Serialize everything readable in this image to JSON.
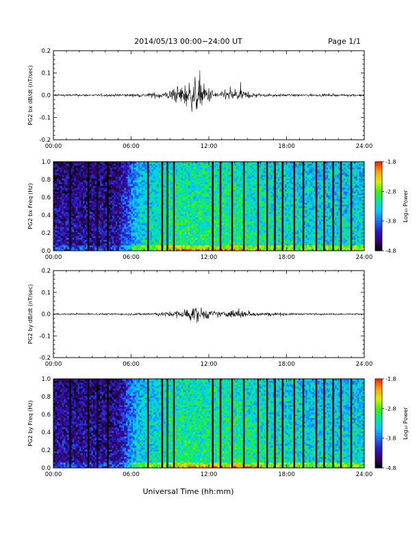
{
  "header": {
    "title": "2014/05/13  00:00−24:00 UT",
    "page": "Page 1/1"
  },
  "xlabel": "Universal Time (hh:mm)",
  "colors": {
    "trace": "#000000",
    "colormap": [
      "#000000",
      "#3a0070",
      "#2a1ac8",
      "#1a6cff",
      "#00c8ff",
      "#00e8a0",
      "#40f000",
      "#d8f000",
      "#ffa000",
      "#ff2000"
    ]
  },
  "chart_data": [
    {
      "type": "line",
      "ylabel": "PG2 bx dB/dt (nT/sec)",
      "xlim": [
        0,
        24
      ],
      "ylim": [
        -0.2,
        0.2
      ],
      "x_ticks": [
        "00:00",
        "06:00",
        "12:00",
        "18:00",
        "24:00"
      ],
      "y_ticks": [
        "-0.2",
        "-0.1",
        "0.0",
        "0.1",
        "0.2"
      ],
      "series": [
        {
          "envelope": [
            [
              0,
              0.008
            ],
            [
              2,
              0.008
            ],
            [
              4,
              0.008
            ],
            [
              5,
              0.01
            ],
            [
              6,
              0.012
            ],
            [
              7,
              0.014
            ],
            [
              7.5,
              0.02
            ],
            [
              8.5,
              0.025
            ],
            [
              9,
              0.04
            ],
            [
              9.5,
              0.065
            ],
            [
              10,
              0.08
            ],
            [
              10.5,
              0.11
            ],
            [
              11,
              0.13
            ],
            [
              11.5,
              0.1
            ],
            [
              12,
              0.06
            ],
            [
              12.5,
              0.035
            ],
            [
              13,
              0.025
            ],
            [
              13.5,
              0.04
            ],
            [
              14,
              0.06
            ],
            [
              14.5,
              0.045
            ],
            [
              15,
              0.025
            ],
            [
              15.5,
              0.018
            ],
            [
              16,
              0.012
            ],
            [
              17,
              0.01
            ],
            [
              18,
              0.009
            ],
            [
              20,
              0.008
            ],
            [
              24,
              0.008
            ]
          ]
        }
      ]
    },
    {
      "type": "heatmap",
      "ylabel": "PG2 bx Freq (Hz)",
      "colorbar_label": "Log₁₀ Power",
      "xlim": [
        0,
        24
      ],
      "ylim": [
        0,
        1.0
      ],
      "clim": [
        -4.8,
        -1.8
      ],
      "x_ticks": [
        "00:00",
        "06:00",
        "12:00",
        "18:00",
        "24:00"
      ],
      "y_ticks": [
        "0.0",
        "0.2",
        "0.4",
        "0.6",
        "0.8",
        "1.0"
      ],
      "colorbar_ticks": [
        "-4.8",
        "-3.8",
        "-2.8",
        "-1.8"
      ],
      "dropout_times_hr": [
        1.3,
        2.7,
        3.4,
        4.2,
        7.3,
        8.4,
        8.8,
        9.3,
        12.3,
        12.9,
        13.8,
        14.7,
        15.8,
        16.5,
        17.1,
        17.7,
        18.6,
        19.3,
        20.3,
        20.9,
        21.6,
        22.2,
        23.0
      ]
    },
    {
      "type": "line",
      "ylabel": "PG2 by dB/dt (nT/sec)",
      "xlim": [
        0,
        24
      ],
      "ylim": [
        -0.2,
        0.2
      ],
      "x_ticks": [
        "00:00",
        "06:00",
        "12:00",
        "18:00",
        "24:00"
      ],
      "y_ticks": [
        "-0.2",
        "-0.1",
        "0.0",
        "0.1",
        "0.2"
      ],
      "series": [
        {
          "envelope": [
            [
              0,
              0.006
            ],
            [
              3,
              0.006
            ],
            [
              5,
              0.007
            ],
            [
              6,
              0.008
            ],
            [
              7,
              0.01
            ],
            [
              8,
              0.012
            ],
            [
              9,
              0.02
            ],
            [
              9.5,
              0.03
            ],
            [
              10,
              0.04
            ],
            [
              10.5,
              0.055
            ],
            [
              11,
              0.065
            ],
            [
              11.5,
              0.05
            ],
            [
              12,
              0.035
            ],
            [
              12.5,
              0.025
            ],
            [
              13,
              0.02
            ],
            [
              13.5,
              0.025
            ],
            [
              14,
              0.04
            ],
            [
              14.5,
              0.035
            ],
            [
              15,
              0.02
            ],
            [
              16,
              0.015
            ],
            [
              17,
              0.015
            ],
            [
              18,
              0.012
            ],
            [
              18.5,
              0.007
            ],
            [
              20,
              0.006
            ],
            [
              24,
              0.006
            ]
          ]
        }
      ]
    },
    {
      "type": "heatmap",
      "ylabel": "PG2 by Freq (Hz)",
      "colorbar_label": "Log₁₀ Power",
      "xlim": [
        0,
        24
      ],
      "ylim": [
        0,
        1.0
      ],
      "clim": [
        -4.8,
        -1.8
      ],
      "x_ticks": [
        "00:00",
        "06:00",
        "12:00",
        "18:00",
        "24:00"
      ],
      "y_ticks": [
        "0.0",
        "0.2",
        "0.4",
        "0.6",
        "0.8",
        "1.0"
      ],
      "colorbar_ticks": [
        "-4.8",
        "-3.8",
        "-2.8",
        "-1.8"
      ],
      "dropout_times_hr": [
        1.3,
        2.7,
        3.4,
        4.2,
        7.3,
        8.4,
        8.8,
        9.3,
        12.3,
        12.9,
        13.8,
        14.7,
        15.8,
        16.5,
        17.1,
        17.7,
        18.6,
        19.3,
        20.3,
        20.9,
        21.6,
        22.2,
        23.0
      ]
    }
  ]
}
